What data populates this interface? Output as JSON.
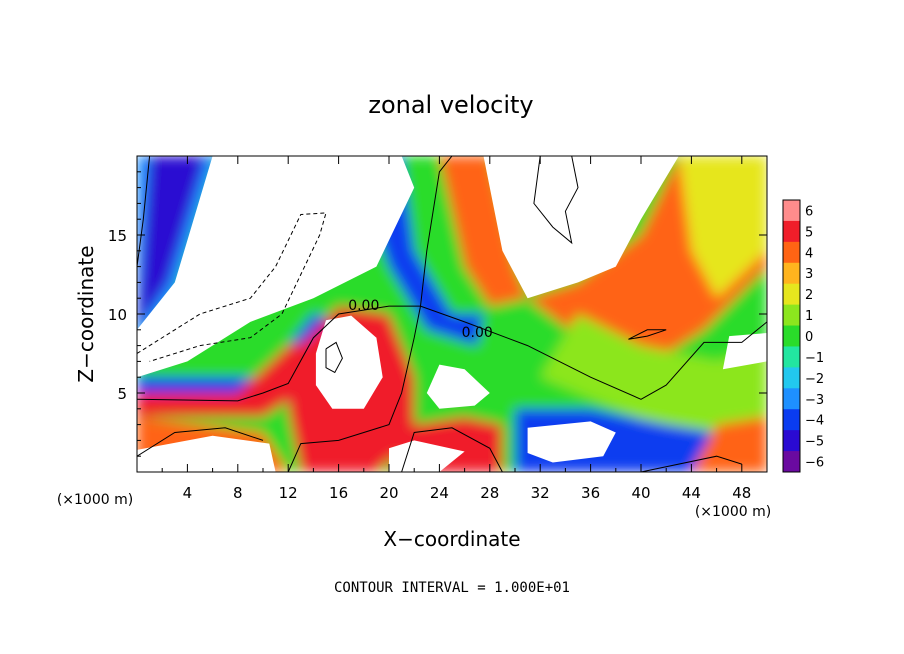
{
  "chart_data": {
    "type": "heatmap",
    "title": "zonal velocity",
    "xlabel": "X−coordinate",
    "ylabel": "Z−coordinate",
    "x_unit_label": "(×1000 m)",
    "y_unit_label": "(×1000 m)",
    "xlim": [
      0,
      50
    ],
    "ylim": [
      0,
      20
    ],
    "x_ticks": [
      "4",
      "8",
      "12",
      "16",
      "20",
      "24",
      "28",
      "32",
      "36",
      "40",
      "44",
      "48"
    ],
    "y_ticks": [
      "5",
      "10",
      "15"
    ],
    "contour_labels": [
      "0.00",
      "0.00"
    ],
    "footer": "CONTOUR INTERVAL = 1.000E+01",
    "colorbar": {
      "labels": [
        "6",
        "5",
        "4",
        "3",
        "2",
        "1",
        "0",
        "−1",
        "−2",
        "−3",
        "−4",
        "−5",
        "−6"
      ],
      "range": [
        -6,
        6
      ],
      "colors": [
        "#6a0aa0",
        "#2a0ad2",
        "#0a3cf0",
        "#1e90ff",
        "#22c8ee",
        "#22e6a0",
        "#2adc2a",
        "#8ce61e",
        "#e6e61e",
        "#ffb41e",
        "#ff6414",
        "#f01e2a",
        "#ff8c8c"
      ]
    },
    "value_range_note": "",
    "fields": {
      "low_speed_regions": [
        {
          "x": 8,
          "z": 14,
          "value": -7
        },
        {
          "x": 16,
          "z": 7.5,
          "value": 7
        },
        {
          "x": 31,
          "z": 14,
          "value": 7
        },
        {
          "x": 25,
          "z": 6,
          "value": 7
        }
      ]
    }
  }
}
